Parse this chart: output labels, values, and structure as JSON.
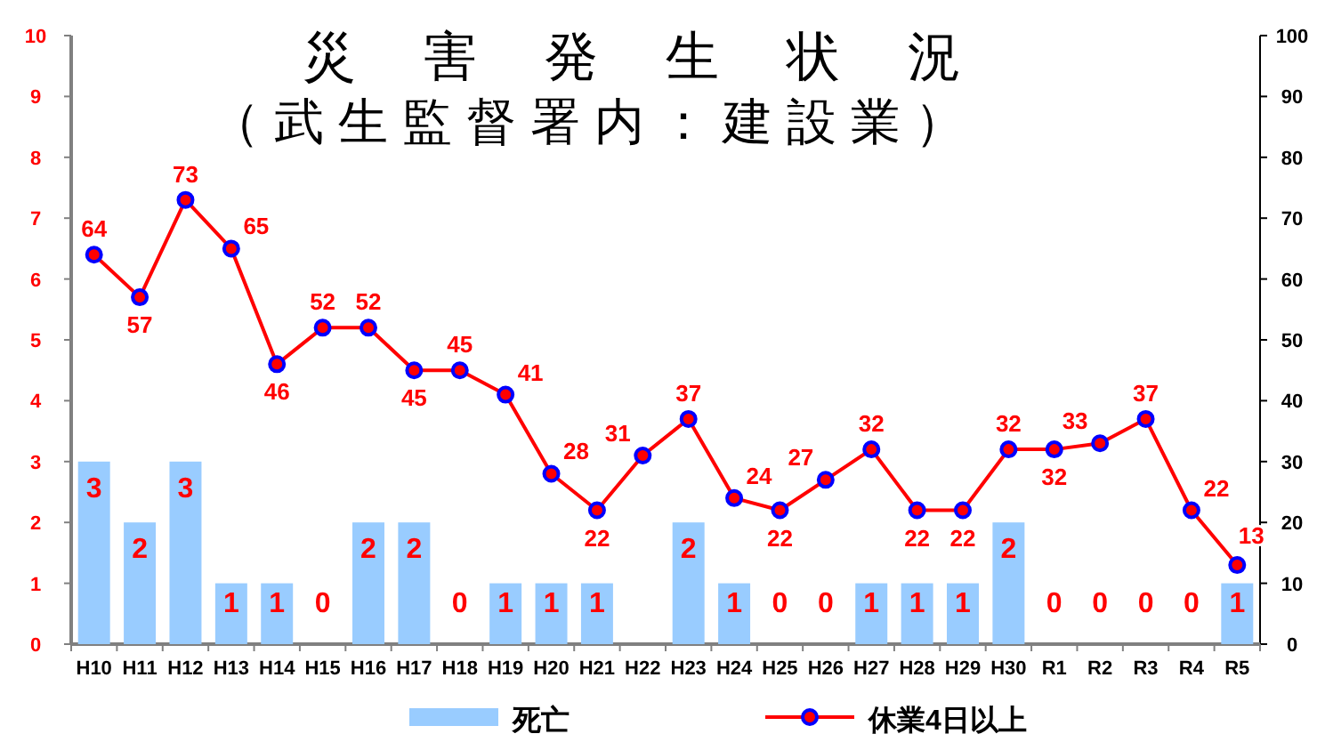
{
  "chart_data": {
    "type": "bar",
    "title": "災害発生状況",
    "subtitle": "（武生監督署内：建設業）",
    "categories": [
      "H10",
      "H11",
      "H12",
      "H13",
      "H14",
      "H15",
      "H16",
      "H17",
      "H18",
      "H19",
      "H20",
      "H21",
      "H22",
      "H23",
      "H24",
      "H25",
      "H26",
      "H27",
      "H28",
      "H29",
      "H30",
      "R1",
      "R2",
      "R3",
      "R4",
      "R5"
    ],
    "series": [
      {
        "name": "死亡",
        "color": "#99ccff",
        "values": [
          3,
          2,
          3,
          1,
          1,
          0,
          2,
          2,
          0,
          1,
          1,
          1,
          0,
          2,
          1,
          0,
          0,
          1,
          1,
          1,
          2,
          0,
          0,
          0,
          0,
          1
        ],
        "value_labels": [
          "3",
          "2",
          "3",
          "1",
          "1",
          "0",
          "2",
          "2",
          "0",
          "1",
          "1",
          "1",
          null,
          "2",
          "1",
          "0",
          "0",
          "1",
          "1",
          "1",
          "2",
          "0",
          "0",
          "0",
          "0",
          "1"
        ]
      },
      {
        "name": "休業4日以上",
        "type": "line",
        "axis": "y2",
        "color": "#ff0000",
        "values": [
          64,
          57,
          73,
          65,
          46,
          52,
          52,
          45,
          45,
          41,
          28,
          22,
          31,
          37,
          24,
          22,
          27,
          32,
          22,
          22,
          32,
          32,
          33,
          37,
          22,
          13
        ],
        "value_labels": [
          "64",
          "57",
          "73",
          "65",
          "46",
          "52",
          "52",
          "45",
          "45",
          "41",
          "28",
          "22",
          "31",
          "37",
          "24",
          "22",
          "27",
          "32",
          "22",
          "22",
          "32",
          "32",
          "33",
          "37",
          "22",
          "13"
        ]
      }
    ],
    "ylim": [
      0,
      10
    ],
    "yticks": [
      0,
      1,
      2,
      3,
      4,
      5,
      6,
      7,
      8,
      9,
      10
    ],
    "y2lim": [
      0,
      100
    ],
    "y2ticks": [
      0,
      10,
      20,
      30,
      40,
      50,
      60,
      70,
      80,
      90,
      100
    ],
    "marker": "circle",
    "line_style": "solid",
    "legend": "bottom"
  }
}
